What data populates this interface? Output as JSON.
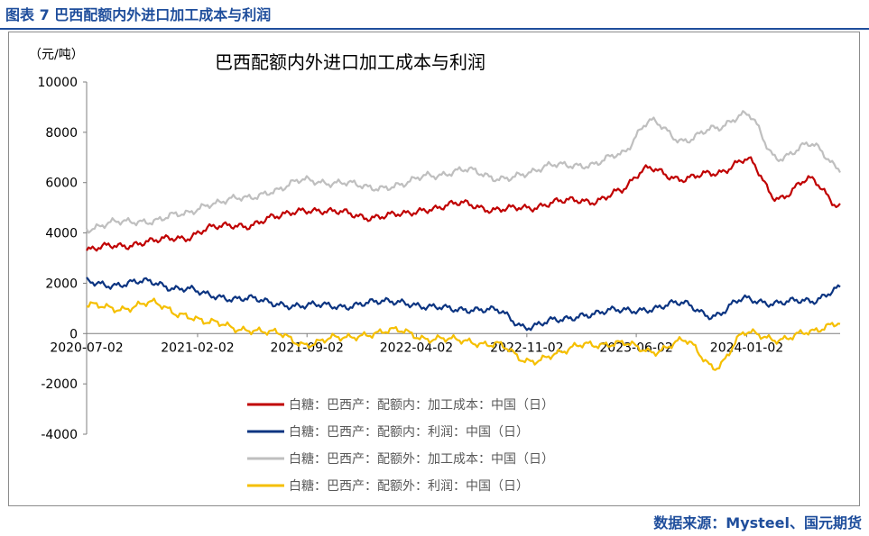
{
  "figure": {
    "label": "图表 7  巴西配额内外进口加工成本与利润",
    "source": "数据来源：Mysteel、国元期货"
  },
  "chart_data": {
    "type": "line",
    "title": "巴西配额内外进口加工成本与利润",
    "ylabel": "（元/吨）",
    "xlabel": "",
    "ylim": [
      -4000,
      10000
    ],
    "yticks": [
      10000,
      8000,
      6000,
      4000,
      2000,
      0,
      -2000,
      -4000
    ],
    "xticks": [
      "2020-07-02",
      "2021-02-02",
      "2021-09-02",
      "2022-04-02",
      "2022-11-02",
      "2023-06-02",
      "2024-01-02"
    ],
    "x_range": [
      "2020-07-02",
      "2024-07-01"
    ],
    "grid": false,
    "legend_position": "bottom-center",
    "x": [
      "2020-07",
      "2020-09",
      "2020-11",
      "2021-01",
      "2021-03",
      "2021-05",
      "2021-07",
      "2021-09",
      "2021-11",
      "2022-01",
      "2022-03",
      "2022-05",
      "2022-07",
      "2022-09",
      "2022-11",
      "2023-01",
      "2023-03",
      "2023-05",
      "2023-07",
      "2023-09",
      "2023-11",
      "2024-01",
      "2024-03",
      "2024-05",
      "2024-07"
    ],
    "series": [
      {
        "name": "白糖：巴西产：配额内：加工成本：中国（日）",
        "color": "#c00000",
        "values": [
          3300,
          3500,
          3650,
          3800,
          4200,
          4300,
          4600,
          4950,
          4800,
          4650,
          4700,
          5000,
          5150,
          4950,
          4950,
          5300,
          5200,
          5700,
          6600,
          6100,
          6400,
          6900,
          5400,
          6100,
          5100
        ]
      },
      {
        "name": "白糖：巴西产：配额内：利润：中国（日）",
        "color": "#0b3481",
        "values": [
          2050,
          1950,
          2050,
          1800,
          1500,
          1400,
          1200,
          1100,
          1100,
          1200,
          1300,
          1000,
          1000,
          900,
          300,
          500,
          800,
          900,
          1000,
          1200,
          700,
          1400,
          1200,
          1300,
          1800
        ]
      },
      {
        "name": "白糖：巴西产：配额外：加工成本：中国（日）",
        "color": "#bfbfbf",
        "values": [
          4200,
          4400,
          4500,
          4700,
          5200,
          5350,
          5700,
          6100,
          6000,
          5800,
          5900,
          6300,
          6500,
          6200,
          6300,
          6800,
          6600,
          7200,
          8400,
          7700,
          8100,
          8800,
          6900,
          7600,
          6500
        ]
      },
      {
        "name": "白糖：巴西产：配额外：利润：中国（日）",
        "color": "#f5bf00",
        "values": [
          1100,
          1000,
          1200,
          800,
          400,
          200,
          0,
          -400,
          -200,
          0,
          100,
          -200,
          -300,
          -400,
          -1100,
          -800,
          -400,
          -400,
          -700,
          -300,
          -1300,
          0,
          -200,
          0,
          500
        ]
      }
    ]
  }
}
